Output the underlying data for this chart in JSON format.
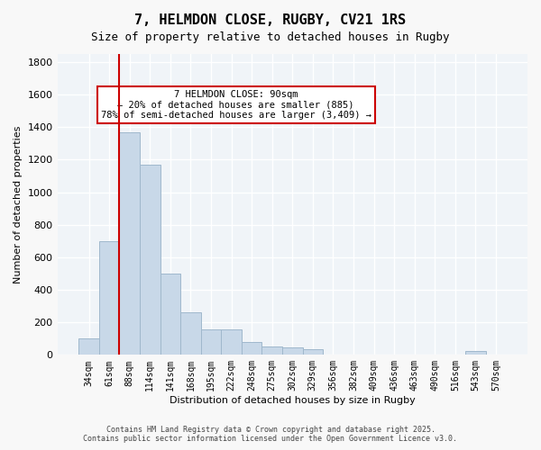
{
  "title1": "7, HELMDON CLOSE, RUGBY, CV21 1RS",
  "title2": "Size of property relative to detached houses in Rugby",
  "xlabel": "Distribution of detached houses by size in Rugby",
  "ylabel": "Number of detached properties",
  "annotation_line1": "7 HELMDON CLOSE: 90sqm",
  "annotation_line2": "← 20% of detached houses are smaller (885)",
  "annotation_line3": "78% of semi-detached houses are larger (3,409) →",
  "footer1": "Contains HM Land Registry data © Crown copyright and database right 2025.",
  "footer2": "Contains public sector information licensed under the Open Government Licence v3.0.",
  "bar_color": "#c8d8e8",
  "bar_edge_color": "#a0b8cc",
  "line_color": "#cc0000",
  "bg_color": "#f0f4f8",
  "grid_color": "#ffffff",
  "annotation_box_color": "#cc0000",
  "categories": [
    "34sqm",
    "61sqm",
    "88sqm",
    "114sqm",
    "141sqm",
    "168sqm",
    "195sqm",
    "222sqm",
    "248sqm",
    "275sqm",
    "302sqm",
    "329sqm",
    "356sqm",
    "382sqm",
    "409sqm",
    "436sqm",
    "463sqm",
    "490sqm",
    "516sqm",
    "543sqm",
    "570sqm"
  ],
  "values": [
    100,
    700,
    1370,
    1170,
    500,
    260,
    155,
    155,
    80,
    50,
    45,
    35,
    0,
    0,
    0,
    0,
    0,
    0,
    0,
    25,
    0
  ],
  "red_line_index": 2,
  "ylim": [
    0,
    1850
  ],
  "yticks": [
    0,
    200,
    400,
    600,
    800,
    1000,
    1200,
    1400,
    1600,
    1800
  ]
}
